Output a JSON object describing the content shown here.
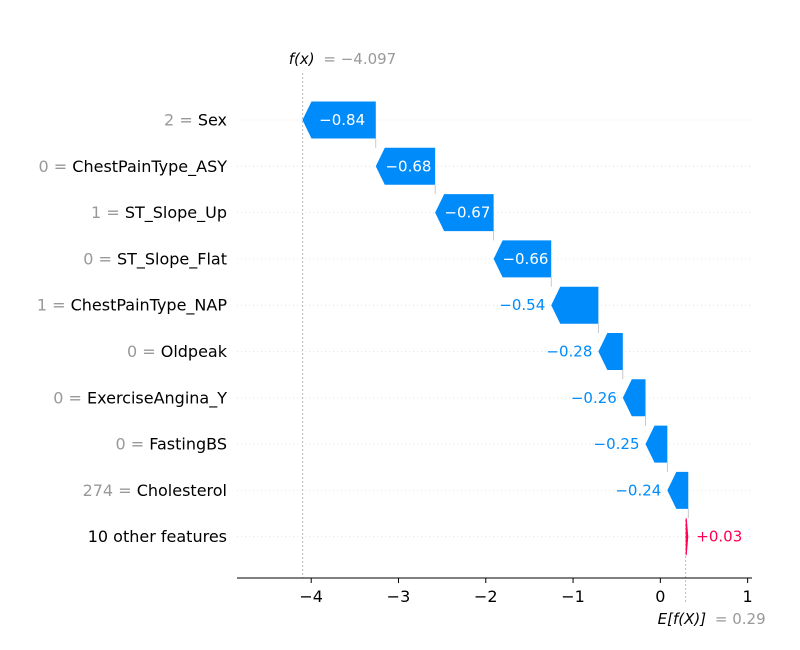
{
  "chart_data": {
    "type": "waterfall",
    "fx_label": "f(x)",
    "fx_value": "= −4.097",
    "fx": -4.097,
    "ex_label": "E[f(X)]",
    "ex_value": "= 0.29",
    "ex": 0.29,
    "features": [
      {
        "value": "2",
        "name": "Sex",
        "shap": -0.84,
        "label": "−0.84"
      },
      {
        "value": "0",
        "name": "ChestPainType_ASY",
        "shap": -0.68,
        "label": "−0.68"
      },
      {
        "value": "1",
        "name": "ST_Slope_Up",
        "shap": -0.67,
        "label": "−0.67"
      },
      {
        "value": "0",
        "name": "ST_Slope_Flat",
        "shap": -0.66,
        "label": "−0.66"
      },
      {
        "value": "1",
        "name": "ChestPainType_NAP",
        "shap": -0.54,
        "label": "−0.54"
      },
      {
        "value": "0",
        "name": "Oldpeak",
        "shap": -0.28,
        "label": "−0.28"
      },
      {
        "value": "0",
        "name": "ExerciseAngina_Y",
        "shap": -0.26,
        "label": "−0.26"
      },
      {
        "value": "0",
        "name": "FastingBS",
        "shap": -0.25,
        "label": "−0.25"
      },
      {
        "value": "274",
        "name": "Cholesterol",
        "shap": -0.24,
        "label": "−0.24"
      },
      {
        "value": "",
        "name": "10 other features",
        "shap": 0.03,
        "label": "+0.03"
      }
    ],
    "x_ticks": [
      {
        "v": -4,
        "label": "−4"
      },
      {
        "v": -3,
        "label": "−3"
      },
      {
        "v": -2,
        "label": "−2"
      },
      {
        "v": -1,
        "label": "−1"
      },
      {
        "v": 0,
        "label": "0"
      },
      {
        "v": 1,
        "label": "1"
      }
    ],
    "xlim": [
      -4.85,
      1.05
    ],
    "colors": {
      "negative": "#008bfb",
      "positive": "#ff0051",
      "muted": "#999999",
      "text": "#000000",
      "grid": "#cccccc"
    }
  }
}
